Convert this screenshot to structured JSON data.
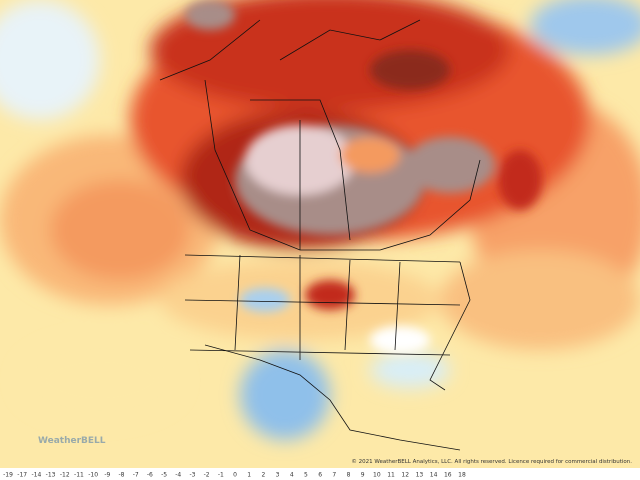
{
  "map": {
    "logo": "WeatherBELL",
    "copyright": "© 2021 WeatherBELL Analytics, LLC. All rights reserved. Licence required for commercial distribution."
  },
  "colorbar": {
    "labels": [
      "-19",
      "-17",
      "-14",
      "-13",
      "-12",
      "-11",
      "-10",
      "-9",
      "-8",
      "-7",
      "-6",
      "-5",
      "-4",
      "-3",
      "-2",
      "-1",
      "0",
      "1",
      "2",
      "3",
      "4",
      "5",
      "6",
      "7",
      "8",
      "9",
      "10",
      "11",
      "12",
      "13",
      "14",
      "16",
      "18"
    ]
  }
}
